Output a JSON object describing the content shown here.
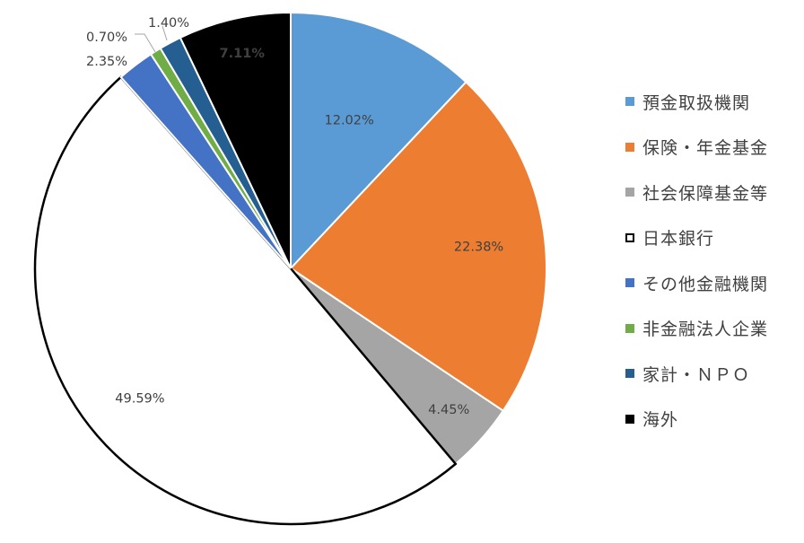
{
  "chart_data": {
    "type": "pie",
    "title": "",
    "unit": "%",
    "start_angle_deg": 0,
    "direction": "clockwise",
    "legend_position": "right",
    "slices": [
      {
        "name": "預金取扱機関",
        "value": 12.02,
        "label": "12.02%",
        "color": "#5B9BD5",
        "label_color": "#404040"
      },
      {
        "name": "保険・年金基金",
        "value": 22.38,
        "label": "22.38%",
        "color": "#ED7D31",
        "label_color": "#404040"
      },
      {
        "name": "社会保障基金等",
        "value": 4.45,
        "label": "4.45%",
        "color": "#A5A5A5",
        "label_color": "#404040"
      },
      {
        "name": "日本銀行",
        "value": 49.59,
        "label": "49.59%",
        "color": "#FFFFFF",
        "outline": "#000000",
        "label_color": "#404040"
      },
      {
        "name": "その他金融機関",
        "value": 2.35,
        "label": "2.35%",
        "color": "#4472C4",
        "label_color": "#404040"
      },
      {
        "name": "非金融法人企業",
        "value": 0.7,
        "label": "0.70%",
        "color": "#70AD47",
        "label_color": "#404040"
      },
      {
        "name": "家計・ＮＰＯ",
        "value": 1.4,
        "label": "1.40%",
        "color": "#255E91",
        "label_color": "#404040"
      },
      {
        "name": "海外",
        "value": 7.11,
        "label": "7.11%",
        "color": "#000000",
        "label_color": "#FFFFFF"
      }
    ]
  }
}
